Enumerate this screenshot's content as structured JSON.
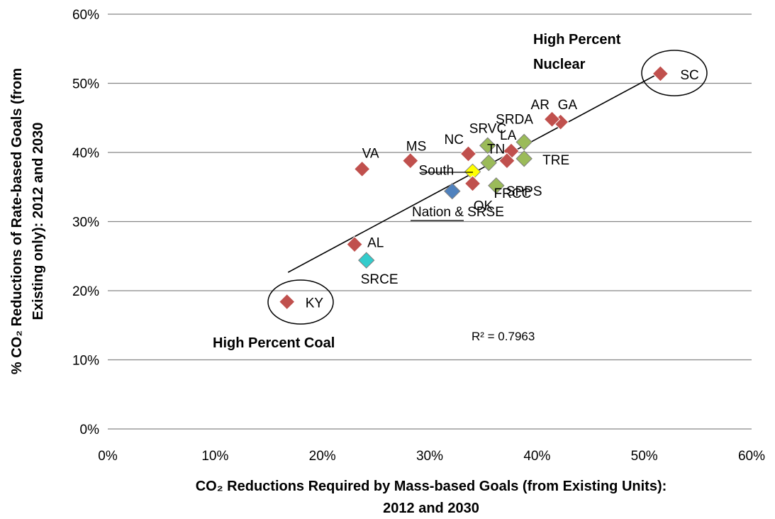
{
  "chart_data": {
    "type": "scatter",
    "x_axis_title": "CO₂ Reductions Required by Mass-based Goals (from Existing Units): 2012 and 2030",
    "x_axis_title_lines": [
      "CO₂ Reductions Required by Mass-based Goals (from Existing Units):",
      "2012 and 2030"
    ],
    "y_axis_title_lines": [
      "% CO₂ Reductions of Rate-based Goals (from",
      "Existing only): 2012 and 2030"
    ],
    "xlim": [
      0,
      0.6
    ],
    "ylim": [
      0,
      0.6
    ],
    "x_ticks": [
      0,
      0.1,
      0.2,
      0.3,
      0.4,
      0.5,
      0.6
    ],
    "x_tick_labels": [
      "0%",
      "10%",
      "20%",
      "30%",
      "40%",
      "50%",
      "60%"
    ],
    "y_ticks": [
      0,
      0.1,
      0.2,
      0.3,
      0.4,
      0.5,
      0.6
    ],
    "y_tick_labels": [
      "0%",
      "10%",
      "20%",
      "30%",
      "40%",
      "50%",
      "60%"
    ],
    "grid": "horizontal",
    "colors": {
      "state": "#C0504D",
      "region": "#9BBB59",
      "south": "#FFFF00",
      "nation": "#4F81BD",
      "srce": "#33CCCC",
      "border": "#ffffff",
      "grid": "#868686",
      "trendline": "#000000"
    },
    "points": [
      {
        "label": "SC",
        "x": 0.515,
        "y": 0.514,
        "group": "state"
      },
      {
        "label": "GA",
        "x": 0.422,
        "y": 0.444,
        "group": "state"
      },
      {
        "label": "AR",
        "x": 0.414,
        "y": 0.448,
        "group": "state"
      },
      {
        "label": "SRDA",
        "x": 0.388,
        "y": 0.415,
        "group": "region"
      },
      {
        "label": "LA",
        "x": 0.376,
        "y": 0.402,
        "group": "state"
      },
      {
        "label": "TN",
        "x": 0.372,
        "y": 0.388,
        "group": "state"
      },
      {
        "label": "SRVC",
        "x": 0.354,
        "y": 0.41,
        "group": "region"
      },
      {
        "label": "",
        "x": 0.355,
        "y": 0.385,
        "group": "region"
      },
      {
        "label": "TRE",
        "x": 0.388,
        "y": 0.391,
        "group": "region"
      },
      {
        "label": "NC",
        "x": 0.336,
        "y": 0.398,
        "group": "state"
      },
      {
        "label": "South",
        "x": 0.34,
        "y": 0.372,
        "group": "south"
      },
      {
        "label": "FRCC",
        "x": 0.34,
        "y": 0.355,
        "group": "state"
      },
      {
        "label": "SPPS",
        "x": 0.362,
        "y": 0.352,
        "group": "region"
      },
      {
        "label": "OK",
        "x": 0.321,
        "y": 0.343,
        "group": "state"
      },
      {
        "label": "Nation",
        "x": 0.321,
        "y": 0.344,
        "group": "nation"
      },
      {
        "label": "MS",
        "x": 0.282,
        "y": 0.388,
        "group": "state"
      },
      {
        "label": "VA",
        "x": 0.237,
        "y": 0.376,
        "group": "state"
      },
      {
        "label": "AL",
        "x": 0.23,
        "y": 0.267,
        "group": "state"
      },
      {
        "label": "SRCE",
        "x": 0.241,
        "y": 0.244,
        "group": "srce"
      },
      {
        "label": "KY",
        "x": 0.167,
        "y": 0.184,
        "group": "state"
      }
    ],
    "extra_labels": {
      "nation_and_srse": [
        "Nation",
        " & SRSE"
      ]
    },
    "trendline": {
      "x_start": 0.168,
      "x_end": 0.515,
      "slope": 0.833,
      "intercept": 0.0866
    },
    "r_squared": "R² = 0.7963",
    "annotations": {
      "high_nuclear": [
        "High Percent",
        "Nuclear"
      ],
      "high_coal": "High Percent Coal"
    }
  }
}
